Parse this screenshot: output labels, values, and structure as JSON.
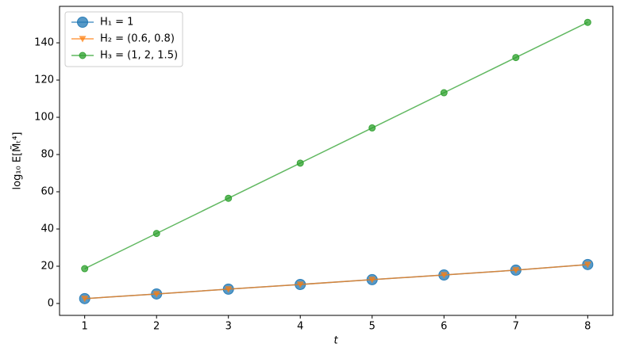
{
  "chart_data": {
    "type": "line",
    "xlabel": "t",
    "ylabel": "log₁₀ E[M̃ₜ⁴]",
    "x": [
      1,
      2,
      3,
      4,
      5,
      6,
      7,
      8
    ],
    "series": [
      {
        "name": "H₁ = 1",
        "color": "#1f77b4",
        "marker": "circle-large",
        "values": [
          2.6,
          5.1,
          7.7,
          10.2,
          12.8,
          15.3,
          17.9,
          20.9
        ]
      },
      {
        "name": "H₂ = (0.6, 0.8)",
        "color": "#ff7f0e",
        "marker": "triangle-down",
        "values": [
          2.6,
          5.1,
          7.7,
          10.2,
          12.8,
          15.3,
          17.9,
          20.9
        ]
      },
      {
        "name": "H₃ = (1, 2, 1.5)",
        "color": "#2ca02c",
        "marker": "circle-small",
        "values": [
          18.7,
          37.6,
          56.5,
          75.4,
          94.3,
          113.2,
          132.1,
          151.0
        ]
      }
    ],
    "xlim": [
      0.65,
      8.35
    ],
    "xticks": [
      1,
      2,
      3,
      4,
      5,
      6,
      7,
      8
    ],
    "ylim": [
      -6.4,
      159.6
    ],
    "yticks": [
      0,
      20,
      40,
      60,
      80,
      100,
      120,
      140
    ],
    "legend": "upper-left",
    "grid": false
  }
}
